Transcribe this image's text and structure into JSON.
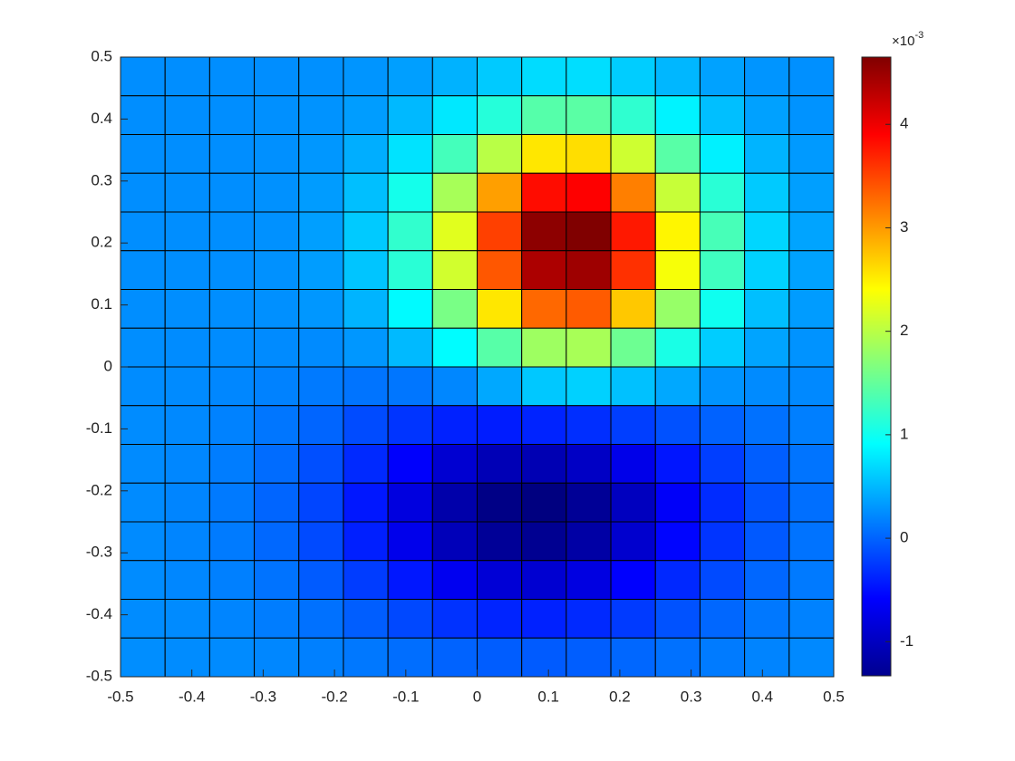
{
  "chart_data": {
    "type": "heatmap",
    "xlim": [
      -0.5,
      0.5
    ],
    "ylim": [
      -0.5,
      0.5
    ],
    "xticks": [
      -0.5,
      -0.4,
      -0.3,
      -0.2,
      -0.1,
      0,
      0.1,
      0.2,
      0.3,
      0.4,
      0.5
    ],
    "yticks": [
      -0.5,
      -0.4,
      -0.3,
      -0.2,
      -0.1,
      0,
      0.1,
      0.2,
      0.3,
      0.4,
      0.5
    ],
    "z": [
      [
        0.25,
        0.25,
        0.25,
        0.25,
        0.26,
        0.29,
        0.35,
        0.46,
        0.6,
        0.71,
        0.72,
        0.62,
        0.49,
        0.37,
        0.29,
        0.26
      ],
      [
        0.25,
        0.25,
        0.25,
        0.26,
        0.28,
        0.34,
        0.5,
        0.78,
        1.13,
        1.41,
        1.44,
        1.19,
        0.84,
        0.54,
        0.36,
        0.28
      ],
      [
        0.25,
        0.25,
        0.25,
        0.26,
        0.3,
        0.44,
        0.75,
        1.31,
        2.0,
        2.55,
        2.6,
        2.12,
        1.43,
        0.83,
        0.47,
        0.32
      ],
      [
        0.25,
        0.25,
        0.25,
        0.27,
        0.33,
        0.54,
        1.03,
        1.89,
        2.97,
        3.83,
        3.91,
        3.16,
        2.08,
        1.15,
        0.6,
        0.35
      ],
      [
        0.25,
        0.25,
        0.25,
        0.27,
        0.35,
        0.6,
        1.2,
        2.23,
        3.53,
        4.57,
        4.65,
        3.76,
        2.46,
        1.33,
        0.67,
        0.38
      ],
      [
        0.25,
        0.25,
        0.25,
        0.27,
        0.34,
        0.57,
        1.15,
        2.14,
        3.39,
        4.39,
        4.47,
        3.62,
        2.36,
        1.28,
        0.65,
        0.37
      ],
      [
        0.25,
        0.25,
        0.25,
        0.26,
        0.3,
        0.47,
        0.89,
        1.62,
        2.55,
        3.29,
        3.37,
        2.73,
        1.8,
        1.0,
        0.54,
        0.33
      ],
      [
        0.25,
        0.24,
        0.24,
        0.23,
        0.23,
        0.3,
        0.51,
        0.9,
        1.42,
        1.84,
        1.9,
        1.55,
        1.06,
        0.62,
        0.38,
        0.28
      ],
      [
        0.24,
        0.23,
        0.21,
        0.18,
        0.13,
        0.1,
        0.11,
        0.21,
        0.4,
        0.59,
        0.64,
        0.55,
        0.4,
        0.28,
        0.23,
        0.22
      ],
      [
        0.24,
        0.22,
        0.18,
        0.11,
        0.01,
        -0.14,
        -0.28,
        -0.39,
        -0.42,
        -0.38,
        -0.31,
        -0.22,
        -0.11,
        -0.01,
        0.08,
        0.16
      ],
      [
        0.23,
        0.21,
        0.15,
        0.05,
        -0.12,
        -0.34,
        -0.6,
        -0.85,
        -1.01,
        -1.03,
        -0.92,
        -0.71,
        -0.46,
        -0.22,
        -0.03,
        0.1
      ],
      [
        0.23,
        0.2,
        0.13,
        0.01,
        -0.18,
        -0.45,
        -0.77,
        -1.08,
        -1.29,
        -1.33,
        -1.2,
        -0.96,
        -0.62,
        -0.33,
        -0.09,
        0.07
      ],
      [
        0.23,
        0.2,
        0.14,
        0.03,
        -0.15,
        -0.4,
        -0.7,
        -0.99,
        -1.19,
        -1.23,
        -1.11,
        -0.87,
        -0.56,
        -0.28,
        -0.06,
        0.09
      ],
      [
        0.24,
        0.21,
        0.17,
        0.09,
        -0.05,
        -0.23,
        -0.45,
        -0.67,
        -0.82,
        -0.85,
        -0.76,
        -0.59,
        -0.35,
        -0.15,
        0.02,
        0.13
      ],
      [
        0.24,
        0.23,
        0.2,
        0.15,
        0.08,
        -0.03,
        -0.16,
        -0.29,
        -0.37,
        -0.39,
        -0.34,
        -0.24,
        -0.1,
        0.02,
        0.12,
        0.18
      ],
      [
        0.25,
        0.24,
        0.23,
        0.21,
        0.17,
        0.12,
        0.06,
        0,
        -0.04,
        -0.05,
        -0.03,
        0.02,
        0.08,
        0.14,
        0.19,
        0.22
      ]
    ],
    "colormap": "jet",
    "colorbar": {
      "clim": [
        -1.33,
        4.65
      ],
      "ticks": [
        -1,
        0,
        1,
        2,
        3,
        4
      ],
      "multiplier": "×10",
      "exponent": "-3"
    }
  }
}
